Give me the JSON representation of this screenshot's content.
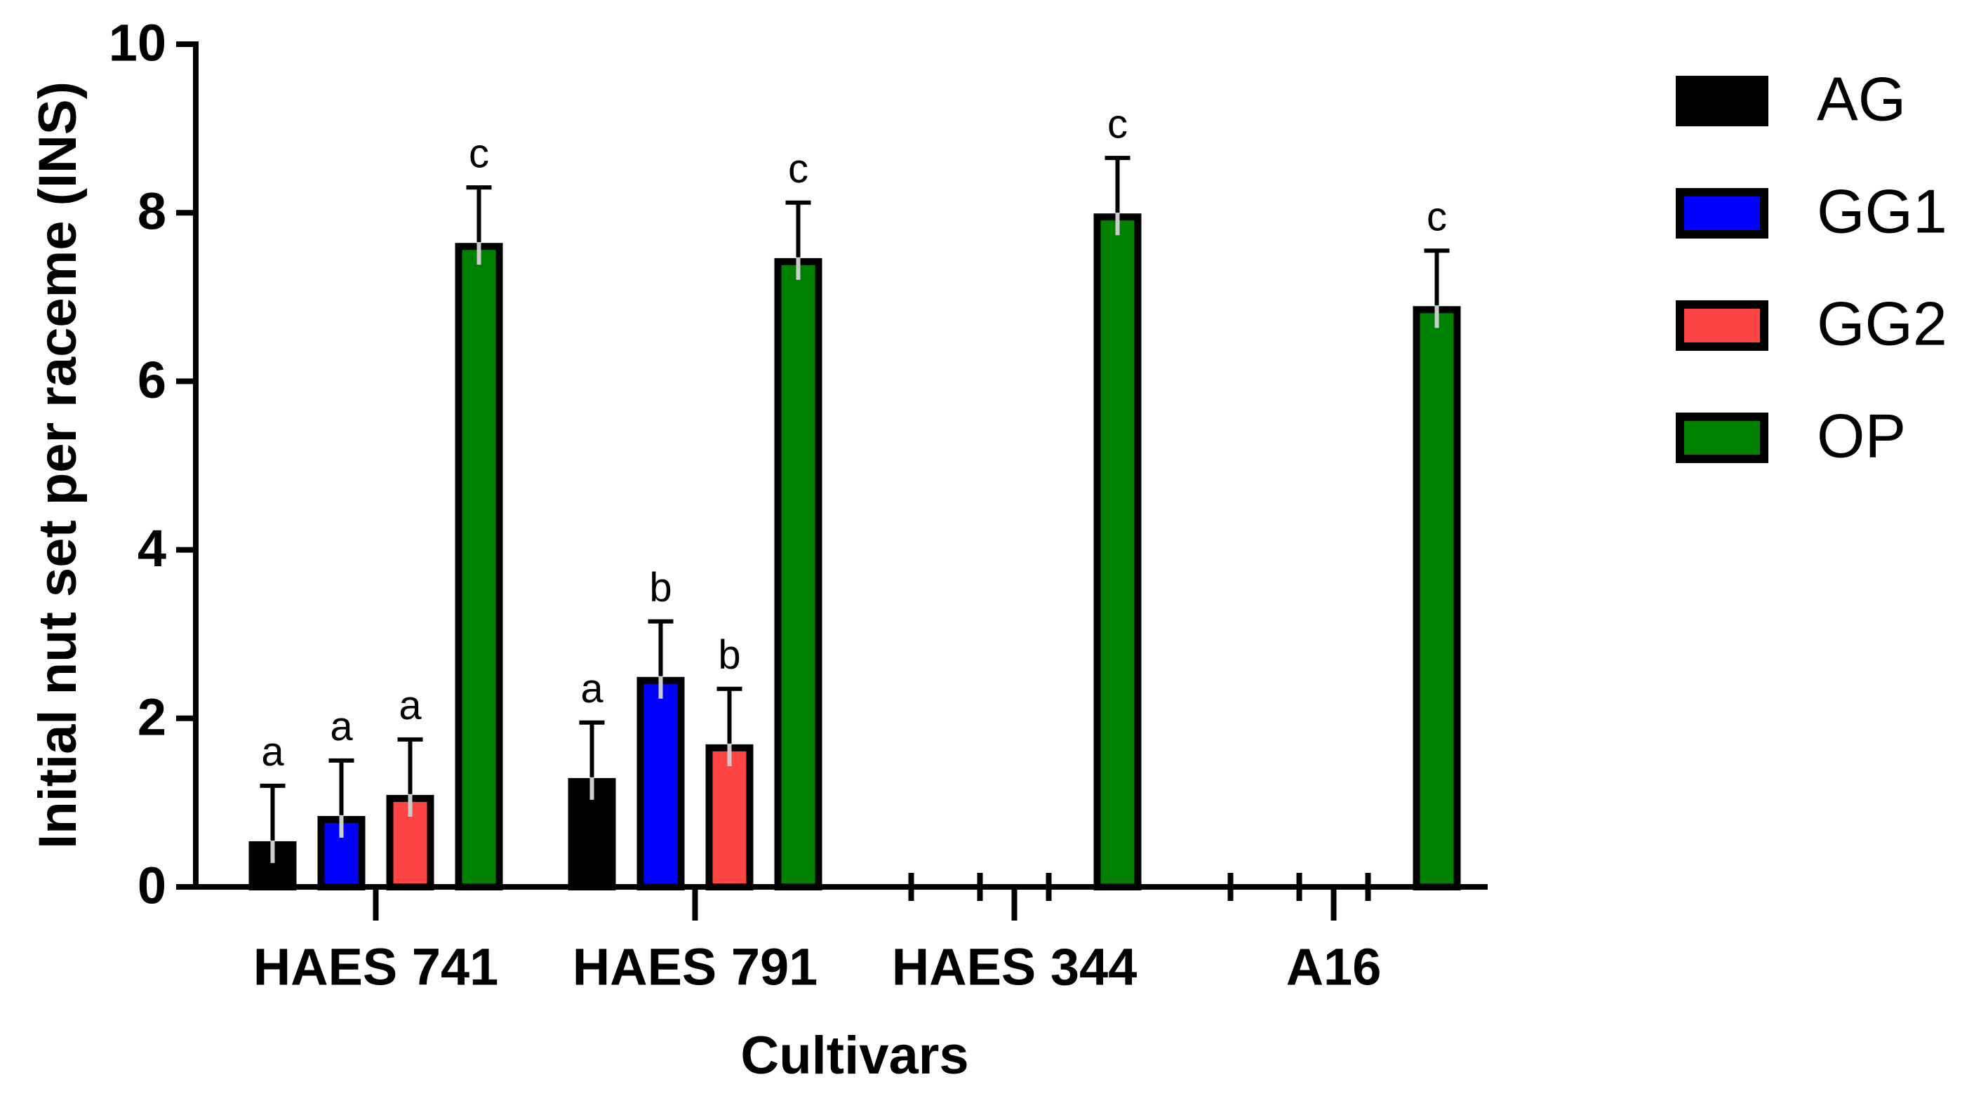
{
  "chart_data": {
    "type": "bar",
    "x_label": "Cultivars",
    "y_label": "Initial nut set per raceme (INS)",
    "categories": [
      "HAES 741",
      "HAES 791",
      "HAES 344",
      "A16"
    ],
    "series": [
      {
        "name": "AG",
        "color": "#000000",
        "values": [
          0.5,
          1.25,
          0,
          0
        ],
        "errors": [
          0.7,
          0.7,
          0,
          0
        ],
        "labels": [
          "a",
          "a",
          null,
          null
        ]
      },
      {
        "name": "GG1",
        "color": "#0000ff",
        "values": [
          0.8,
          2.45,
          0,
          0
        ],
        "errors": [
          0.7,
          0.7,
          0,
          0
        ],
        "labels": [
          "a",
          "b",
          null,
          null
        ]
      },
      {
        "name": "GG2",
        "color": "#ff4444",
        "values": [
          1.05,
          1.65,
          0,
          0
        ],
        "errors": [
          0.7,
          0.7,
          0,
          0
        ],
        "labels": [
          "a",
          "b",
          null,
          null
        ]
      },
      {
        "name": "OP",
        "color": "#008000",
        "values": [
          7.6,
          7.42,
          7.95,
          6.85
        ],
        "errors": [
          0.7,
          0.7,
          0.7,
          0.7
        ],
        "labels": [
          "c",
          "c",
          "c",
          "c"
        ]
      }
    ],
    "ylim": [
      0,
      10
    ],
    "yticks": [
      0,
      2,
      4,
      6,
      8,
      10
    ],
    "legend": "right"
  }
}
